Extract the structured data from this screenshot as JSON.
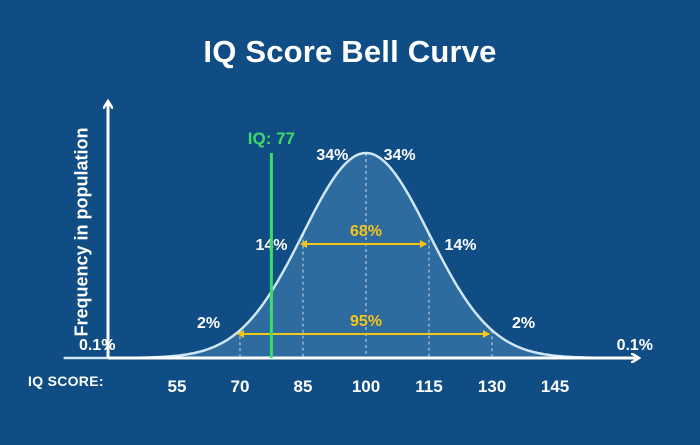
{
  "chart_data": {
    "type": "area",
    "title": "IQ Score Bell Curve",
    "xlabel": "IQ SCORE:",
    "ylabel": "Frequency in population",
    "xlim": [
      25,
      170
    ],
    "mean": 100,
    "sd": 15,
    "x_ticks": [
      55,
      70,
      85,
      100,
      115,
      130,
      145
    ],
    "band_percentages": [
      {
        "label": "0.1%",
        "x": 36
      },
      {
        "label": "2%",
        "x": 62.5
      },
      {
        "label": "14%",
        "x": 77.5
      },
      {
        "label": "34%",
        "x": 92
      },
      {
        "label": "34%",
        "x": 108
      },
      {
        "label": "14%",
        "x": 122.5
      },
      {
        "label": "2%",
        "x": 137.5
      },
      {
        "label": "0.1%",
        "x": 164
      }
    ],
    "ranges": [
      {
        "label": "68%",
        "from": 85,
        "to": 115
      },
      {
        "label": "95%",
        "from": 70,
        "to": 130
      }
    ],
    "marker": {
      "label": "IQ: 77",
      "value": 77
    }
  },
  "colors": {
    "background": "#0f4d84",
    "curve_fill": "#2e6b9e",
    "curve_stroke": "#cfe6f5",
    "axis": "#ffffff",
    "range_arrows": "#f5c518",
    "marker": "#3ddc6a"
  }
}
